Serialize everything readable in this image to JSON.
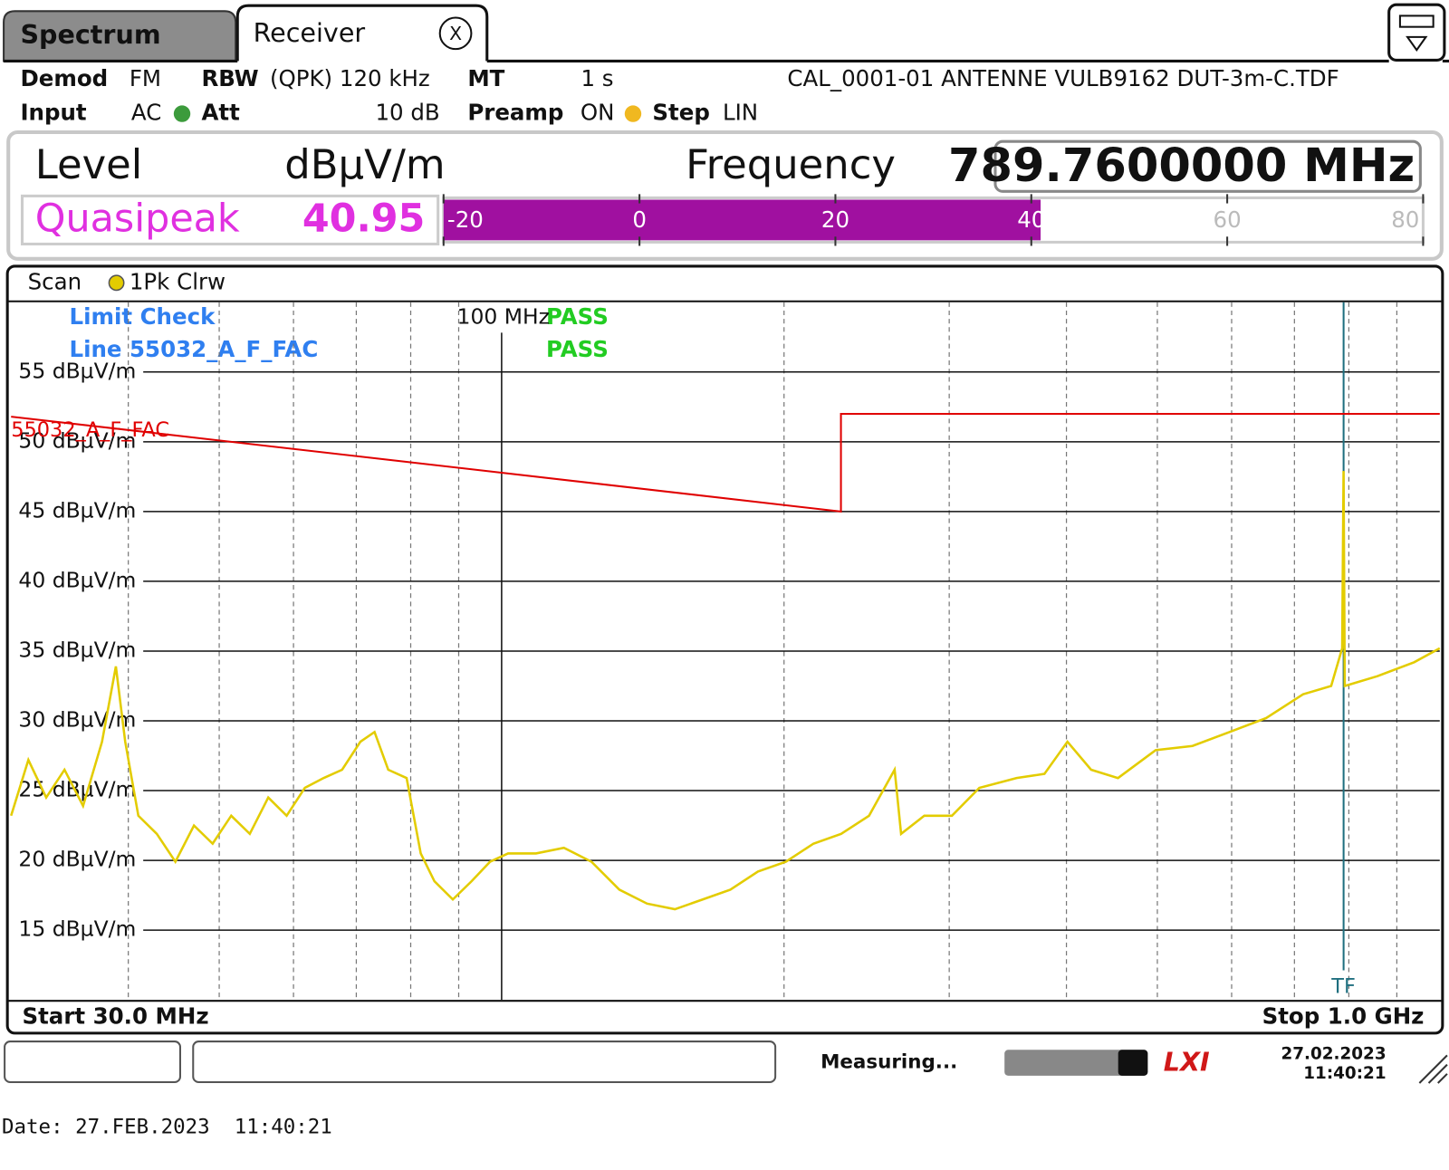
{
  "tabs": [
    "Spectrum",
    "Receiver"
  ],
  "close_label": "X",
  "header": {
    "demod_label": "Demod",
    "demod": "FM",
    "rbw_label": "RBW",
    "rbw": "(QPK) 120 kHz",
    "mt_label": "MT",
    "mt": "1 s",
    "transducer": "CAL_0001-01 ANTENNE VULB9162 DUT-3m-C.TDF",
    "input_label": "Input",
    "input": "AC",
    "att_label": "Att",
    "att": "10 dB",
    "preamp_label": "Preamp",
    "preamp": "ON",
    "step_label": "Step",
    "step": "LIN"
  },
  "readout": {
    "level_label": "Level",
    "unit": "dBµV/m",
    "frequency_label": "Frequency",
    "frequency": "789.7600000 MHz",
    "detector": "Quasipeak",
    "level": 40.95,
    "meter_min": -20,
    "meter_max": 80,
    "meter_ticks": [
      -20,
      0,
      20,
      40,
      60,
      80
    ]
  },
  "chart_data": {
    "type": "line",
    "trace_label": "Scan",
    "xscale": "log",
    "limit_check": {
      "title": "Limit Check",
      "line_label": "Line 55032_A_F_FAC",
      "results": [
        "PASS",
        "PASS"
      ]
    },
    "xlim": [
      30,
      1000
    ],
    "ylim": [
      10,
      60
    ],
    "yticks": [
      {
        "value": 15,
        "label": "15 dBµV/m"
      },
      {
        "value": 20,
        "label": "20 dBµV/m"
      },
      {
        "value": 25,
        "label": "25 dBµV/m"
      },
      {
        "value": 30,
        "label": "30 dBµV/m"
      },
      {
        "value": 35,
        "label": "35 dBµV/m"
      },
      {
        "value": 40,
        "label": "40 dBµV/m"
      },
      {
        "value": 45,
        "label": "45 dBµV/m"
      },
      {
        "value": 50,
        "label": "50 dBµV/m"
      },
      {
        "value": 55,
        "label": "55 dBµV/m"
      }
    ],
    "xticks": [
      {
        "value": 100,
        "label": "100 MHz"
      }
    ],
    "xgrid": [
      40,
      50,
      60,
      70,
      80,
      90,
      200,
      300,
      400,
      500,
      600,
      700,
      800,
      900
    ],
    "start_label": "Start 30.0 MHz",
    "stop_label": "Stop 1.0 GHz",
    "marker": {
      "label": "TF",
      "x": 789.76
    },
    "series": [
      {
        "name": "1Pk Clrw",
        "color": "#e3cc00",
        "x": [
          30.0,
          31.3,
          32.7,
          34.2,
          35.8,
          37.5,
          38.8,
          39.7,
          41.0,
          42.9,
          44.9,
          47.0,
          49.2,
          51.5,
          53.9,
          56.4,
          59.0,
          61.7,
          64.6,
          67.6,
          70.7,
          73.2,
          75.7,
          79.2,
          82.0,
          84.8,
          88.7,
          92.9,
          97.2,
          101.6,
          108.8,
          116.5,
          124.7,
          133.5,
          142.9,
          153.0,
          163.8,
          175.3,
          187.6,
          200.9,
          215.0,
          230.1,
          246.4,
          262.4,
          266.6,
          282.2,
          302,
          323,
          354,
          379,
          401,
          425,
          454,
          498,
          545,
          597,
          653,
          715,
          766,
          787,
          789.76,
          792,
          858,
          939,
          1000
        ],
        "values": [
          23.2,
          27.2,
          24.5,
          26.5,
          23.9,
          28.5,
          33.9,
          28.5,
          23.2,
          21.9,
          19.9,
          22.5,
          21.2,
          23.2,
          21.9,
          24.5,
          23.2,
          25.2,
          25.9,
          26.5,
          28.5,
          29.2,
          26.5,
          25.9,
          20.5,
          18.5,
          17.2,
          18.5,
          19.9,
          20.5,
          20.5,
          20.9,
          19.9,
          17.9,
          16.9,
          16.5,
          17.2,
          17.9,
          19.2,
          19.9,
          21.2,
          21.9,
          23.2,
          26.5,
          21.9,
          23.2,
          23.2,
          25.2,
          25.9,
          26.2,
          28.5,
          26.5,
          25.9,
          27.9,
          28.2,
          29.2,
          30.2,
          31.9,
          32.5,
          35.2,
          47.9,
          32.5,
          33.2,
          34.2,
          35.2
        ]
      },
      {
        "name": "55032_A_F_FAC",
        "color": "#e00000",
        "x": [
          30,
          230,
          230,
          1000
        ],
        "values": [
          51.8,
          45,
          52,
          52
        ]
      }
    ]
  },
  "status": {
    "message": "Measuring...",
    "date": "27.02.2023",
    "time": "11:40:21"
  },
  "footer": "Date: 27.FEB.2023  11:40:21"
}
